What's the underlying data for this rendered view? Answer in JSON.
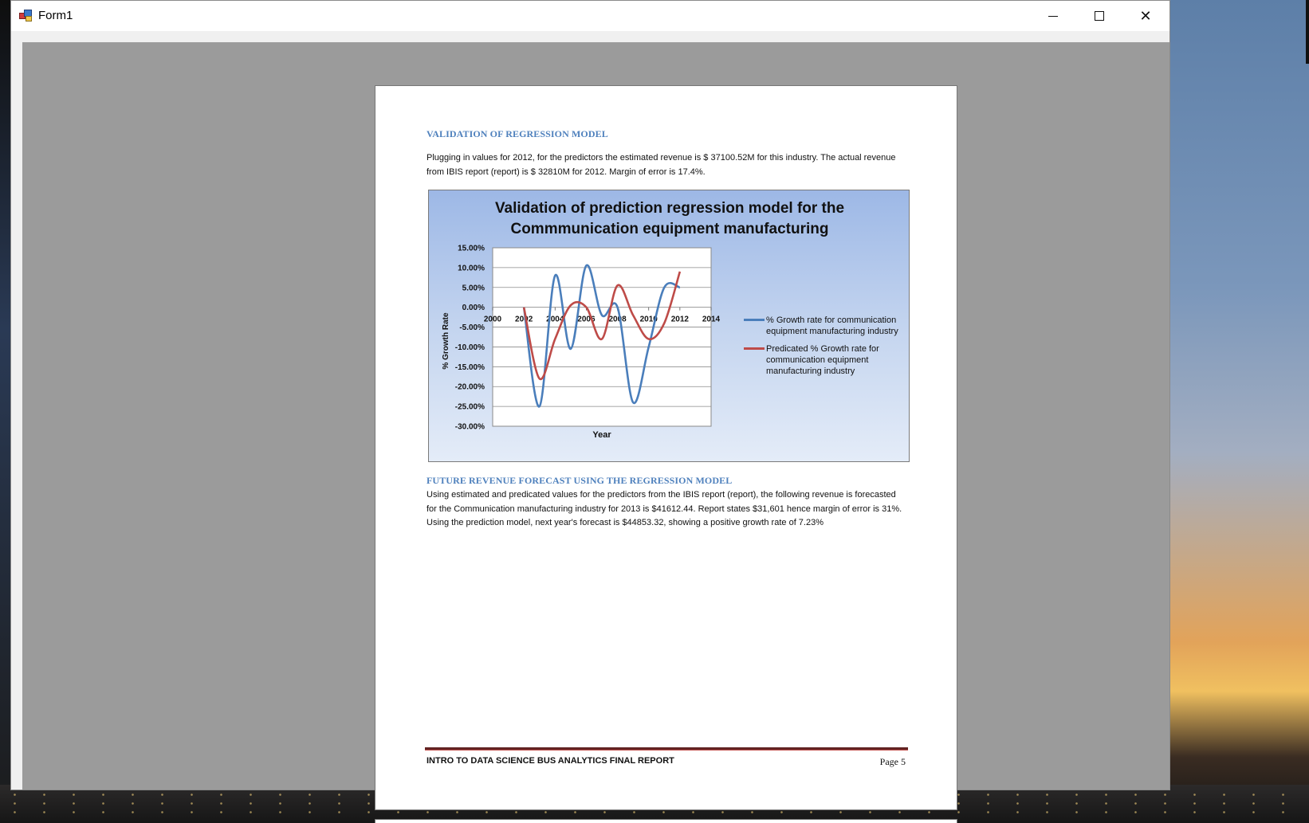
{
  "window": {
    "title": "Form1",
    "minimize_glyph": "",
    "maximize_glyph": "",
    "close_glyph": "✕"
  },
  "document": {
    "section1_heading": "VALIDATION OF REGRESSION MODEL",
    "section1_paragraph": "Plugging in values for 2012, for the predictors the estimated revenue is $ 37100.52M for this industry. The actual revenue from IBIS report (report) is $ 32810M for 2012. Margin of error is 17.4%.",
    "section2_heading": "FUTURE REVENUE FORECAST USING THE REGRESSION MODEL",
    "section2_paragraph": "Using estimated and predicated values for the predictors from the IBIS report (report), the following revenue is forecasted for the Communication manufacturing industry for 2013 is $41612.44.  Report states $31,601 hence margin of error is 31%.  Using the prediction model, next year's forecast is $44853.32, showing a positive growth rate of 7.23%",
    "footer_left": "INTRO TO DATA SCIENCE BUS ANALYTICS FINAL REPORT",
    "footer_right": "Page 5"
  },
  "chart_data": {
    "type": "line",
    "title_line1": "Validation of prediction regression model for the",
    "title_line2": "Commmunication equipment manufacturing",
    "xlabel": "Year",
    "ylabel": "% Growth Rate",
    "xlim": [
      2000,
      2014
    ],
    "ylim": [
      -30,
      15
    ],
    "x_ticks": [
      "2000",
      "2002",
      "2004",
      "2006",
      "2008",
      "2010",
      "2012",
      "2014"
    ],
    "y_ticks": [
      "15.00%",
      "10.00%",
      "5.00%",
      "0.00%",
      "-5.00%",
      "-10.00%",
      "-15.00%",
      "-20.00%",
      "-25.00%",
      "-30.00%"
    ],
    "grid": true,
    "legend_position": "right",
    "series": [
      {
        "name": "% Growth rate for communication equipment  manufacturing industry",
        "color": "#4a7ebb",
        "x": [
          2002,
          2003,
          2004,
          2005,
          2006,
          2007,
          2008,
          2009,
          2010,
          2011,
          2012
        ],
        "y": [
          0,
          -25,
          8,
          -10.5,
          10.5,
          -2,
          0,
          -24,
          -10,
          5,
          5
        ]
      },
      {
        "name": "Predicated % Growth rate for communication equipment manufacturing industry",
        "color": "#be4b48",
        "x": [
          2002,
          2003,
          2004,
          2005,
          2006,
          2007,
          2008,
          2009,
          2010,
          2011,
          2012
        ],
        "y": [
          0,
          -18,
          -8,
          0.5,
          0,
          -8,
          5.5,
          -2,
          -8,
          -4,
          9
        ]
      }
    ]
  }
}
